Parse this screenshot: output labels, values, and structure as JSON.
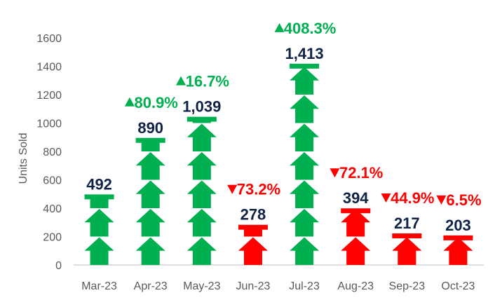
{
  "chart_data": {
    "type": "bar",
    "categories": [
      "Mar-23",
      "Apr-23",
      "May-23",
      "Jun-23",
      "Jul-23",
      "Aug-23",
      "Sep-23",
      "Oct-23"
    ],
    "values": [
      492,
      890,
      1039,
      278,
      1413,
      394,
      217,
      203
    ],
    "value_labels": [
      "492",
      "890",
      "1,039",
      "278",
      "1,413",
      "394",
      "217",
      "203"
    ],
    "changes": [
      {
        "text": "",
        "direction": ""
      },
      {
        "text": "80.9%",
        "direction": "up"
      },
      {
        "text": "16.7%",
        "direction": "up"
      },
      {
        "text": "73.2%",
        "direction": "down"
      },
      {
        "text": "408.3%",
        "direction": "up"
      },
      {
        "text": "72.1%",
        "direction": "down"
      },
      {
        "text": "44.9%",
        "direction": "down"
      },
      {
        "text": "6.5%",
        "direction": "down"
      }
    ],
    "bar_colors": [
      "up",
      "up",
      "up",
      "down",
      "up",
      "down",
      "down",
      "down"
    ],
    "title": "",
    "xlabel": "",
    "ylabel": "Units Sold",
    "ylim": [
      0,
      1600
    ],
    "yticks": [
      "0",
      "200",
      "400",
      "600",
      "800",
      "1000",
      "1200",
      "1400",
      "1600"
    ],
    "grid": false,
    "icon": "house-icon",
    "colors": {
      "up": "#00b050",
      "down": "#ff0000",
      "value_text": "#0f2347",
      "axis": "#bfbfbf",
      "tick_text": "#595959"
    }
  }
}
